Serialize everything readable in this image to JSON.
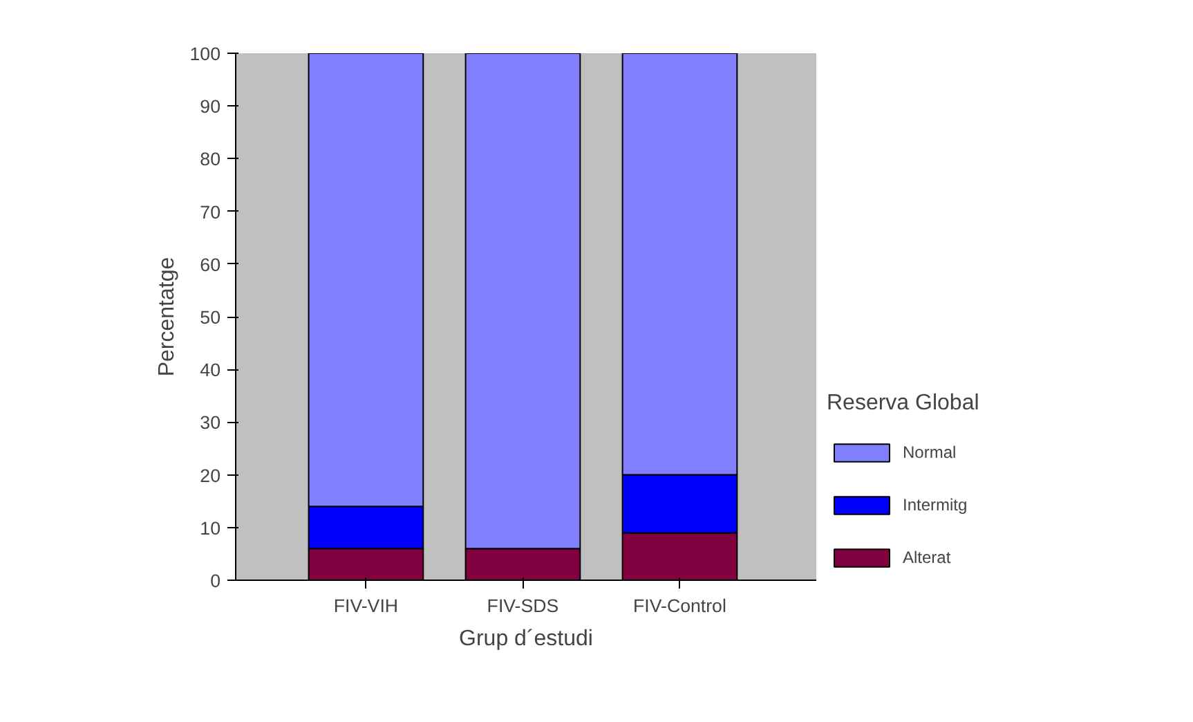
{
  "chart_data": {
    "type": "bar",
    "stacked": true,
    "xlabel": "Grup d´estudi",
    "ylabel": "Percentatge",
    "legend_title": "Reserva Global",
    "categories": [
      "FIV-VIH",
      "FIV-SDS",
      "FIV-Control"
    ],
    "series": [
      {
        "name": "Alterat",
        "color": "#800040",
        "values": [
          6,
          6,
          9
        ]
      },
      {
        "name": "Intermitg",
        "color": "#0000ff",
        "values": [
          8,
          0,
          11
        ]
      },
      {
        "name": "Normal",
        "color": "#8080ff",
        "values": [
          86,
          94,
          80
        ]
      }
    ],
    "ylim": [
      0,
      100
    ],
    "yticks": [
      0,
      10,
      20,
      30,
      40,
      50,
      60,
      70,
      80,
      90,
      100
    ],
    "grid": false,
    "legend": "right"
  }
}
